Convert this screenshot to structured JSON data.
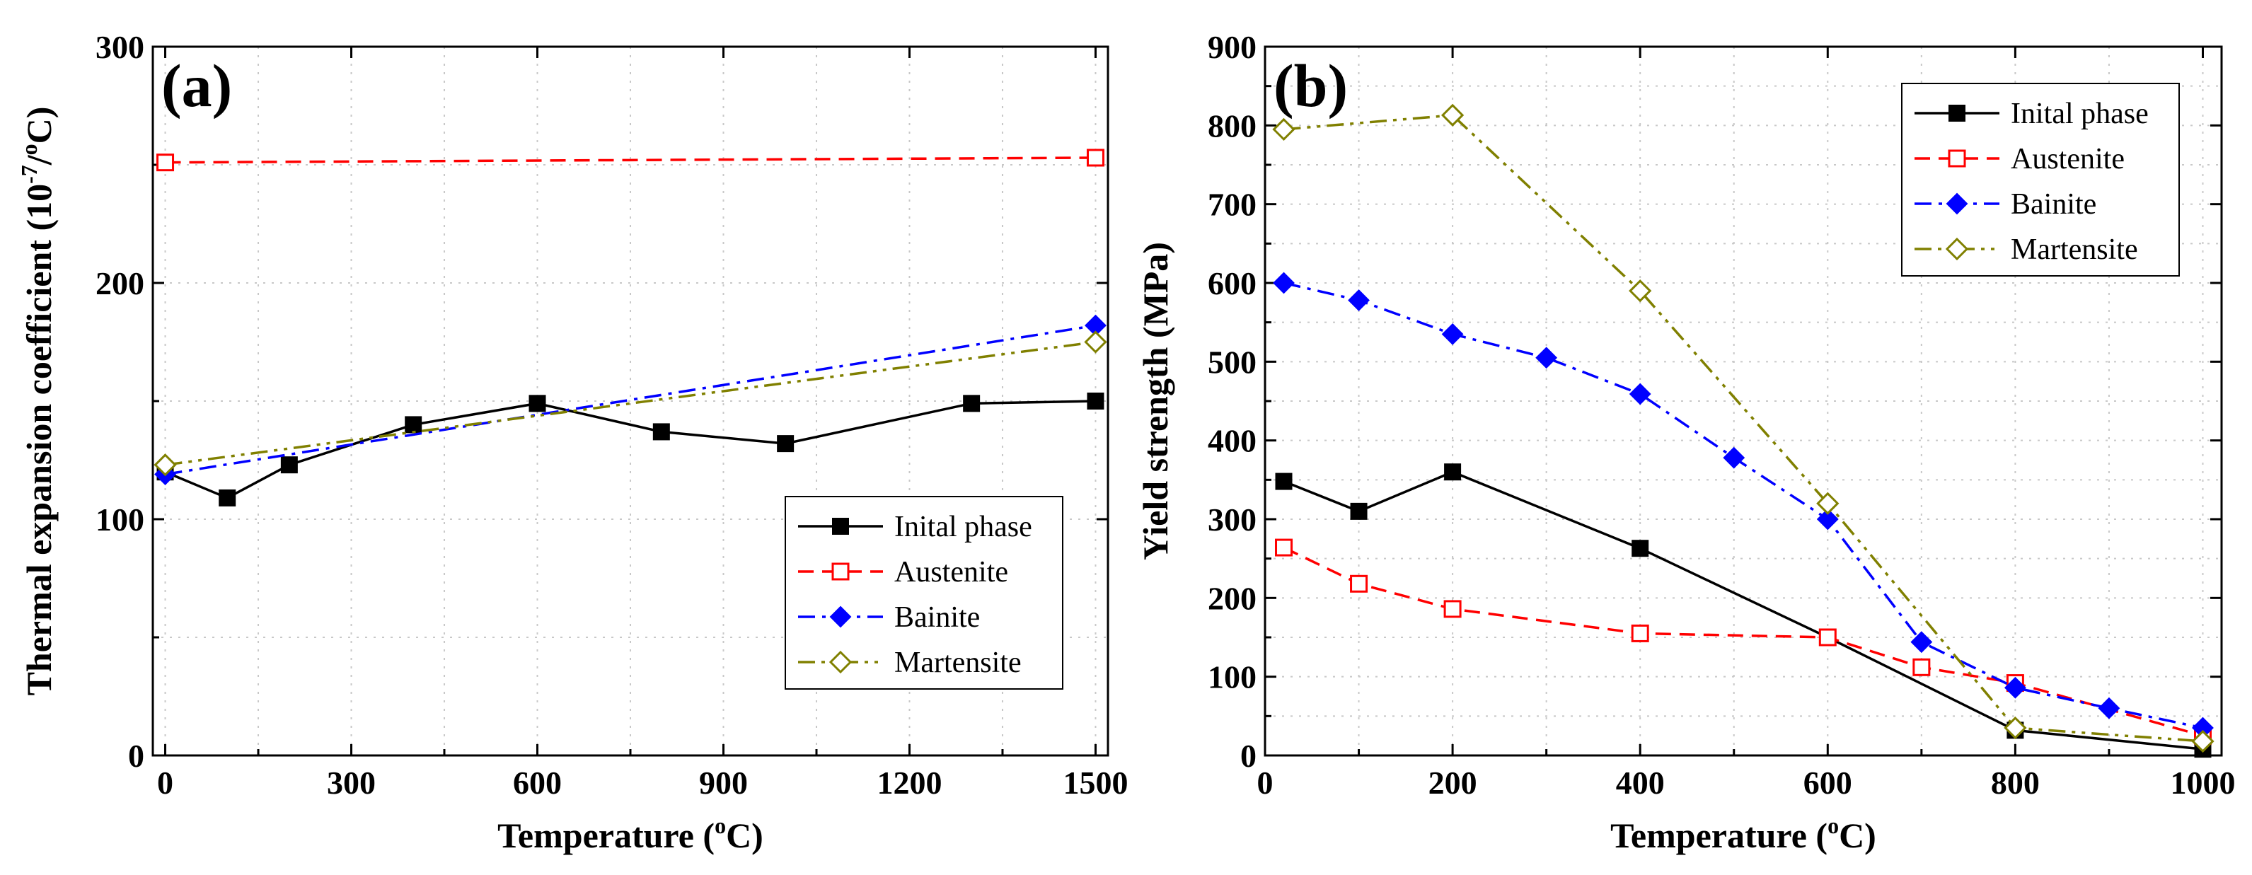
{
  "chart_data": [
    {
      "type": "line",
      "panel_label": "(a)",
      "xlabel": "Temperature (",
      "xlabel_unit": "C)",
      "ylabel": "Thermal expansion coefficient (10",
      "ylabel_unit": "/",
      "ylabel_unit_tail": "C)",
      "ylabel_exp": "-7",
      "degree_mark": "o",
      "xlim": [
        -20,
        1520
      ],
      "ylim": [
        0,
        300
      ],
      "x_ticks": [
        0,
        300,
        600,
        900,
        1200,
        1500
      ],
      "x_tick_labels": [
        "0",
        "300",
        "600",
        "900",
        "1200",
        "1500"
      ],
      "y_ticks": [
        0,
        100,
        200,
        300
      ],
      "y_tick_labels": [
        "0",
        "100",
        "200",
        "300"
      ],
      "grid": true,
      "legend": "bottom-right",
      "series": [
        {
          "name": "Inital phase",
          "color": "#000000",
          "dash": "solid",
          "marker": "square-filled",
          "x": [
            0,
            100,
            200,
            400,
            600,
            800,
            1000,
            1300,
            1500
          ],
          "values": [
            120,
            109,
            123,
            140,
            149,
            137,
            132,
            149,
            150
          ]
        },
        {
          "name": "Austenite",
          "color": "#ff0000",
          "dash": "dash",
          "marker": "square-open",
          "x": [
            0,
            1500
          ],
          "values": [
            251,
            253
          ]
        },
        {
          "name": "Bainite",
          "color": "#0000ff",
          "dash": "dashdot",
          "marker": "diamond-filled",
          "x": [
            0,
            1500
          ],
          "values": [
            119,
            182
          ]
        },
        {
          "name": "Martensite",
          "color": "#808000",
          "dash": "dashdotdot",
          "marker": "diamond-open",
          "x": [
            0,
            1500
          ],
          "values": [
            123,
            175
          ]
        }
      ]
    },
    {
      "type": "line",
      "panel_label": "(b)",
      "xlabel": "Temperature (",
      "xlabel_unit": "C)",
      "ylabel": "Yield strength (MPa)",
      "degree_mark": "o",
      "xlim": [
        0,
        1020
      ],
      "ylim": [
        0,
        900
      ],
      "x_ticks": [
        0,
        200,
        400,
        600,
        800,
        1000
      ],
      "x_tick_labels": [
        "0",
        "200",
        "400",
        "600",
        "800",
        "1000"
      ],
      "y_ticks": [
        0,
        100,
        200,
        300,
        400,
        500,
        600,
        700,
        800,
        900
      ],
      "y_tick_labels": [
        "0",
        "100",
        "200",
        "300",
        "400",
        "500",
        "600",
        "700",
        "800",
        "900"
      ],
      "grid": true,
      "legend": "top-right",
      "series": [
        {
          "name": "Inital phase",
          "color": "#000000",
          "dash": "solid",
          "marker": "square-filled",
          "x": [
            20,
            100,
            200,
            400,
            600,
            800,
            1000
          ],
          "values": [
            348,
            310,
            360,
            263,
            150,
            32,
            8
          ]
        },
        {
          "name": "Austenite",
          "color": "#ff0000",
          "dash": "dash",
          "marker": "square-open",
          "x": [
            20,
            100,
            200,
            400,
            600,
            700,
            800,
            1000
          ],
          "values": [
            264,
            218,
            186,
            155,
            150,
            112,
            92,
            25
          ]
        },
        {
          "name": "Bainite",
          "color": "#0000ff",
          "dash": "dashdot",
          "marker": "diamond-filled",
          "x": [
            20,
            100,
            200,
            300,
            400,
            500,
            600,
            700,
            800,
            900,
            1000
          ],
          "values": [
            600,
            578,
            535,
            505,
            459,
            378,
            300,
            144,
            86,
            60,
            35
          ]
        },
        {
          "name": "Martensite",
          "color": "#808000",
          "dash": "dashdotdot",
          "marker": "diamond-open",
          "x": [
            20,
            200,
            400,
            600,
            800,
            1000
          ],
          "values": [
            795,
            813,
            590,
            320,
            35,
            18
          ]
        }
      ]
    }
  ]
}
